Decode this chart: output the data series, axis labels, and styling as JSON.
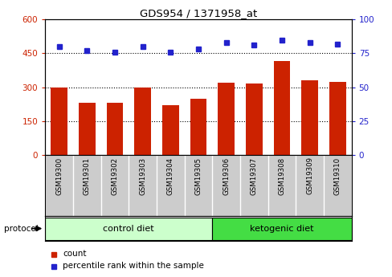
{
  "title": "GDS954 / 1371958_at",
  "samples": [
    "GSM19300",
    "GSM19301",
    "GSM19302",
    "GSM19303",
    "GSM19304",
    "GSM19305",
    "GSM19306",
    "GSM19307",
    "GSM19308",
    "GSM19309",
    "GSM19310"
  ],
  "counts": [
    298,
    232,
    232,
    300,
    220,
    250,
    320,
    315,
    415,
    330,
    325
  ],
  "percentile_ranks": [
    80,
    77,
    76,
    80,
    76,
    78,
    83,
    81,
    85,
    83,
    82
  ],
  "ylim_left": [
    0,
    600
  ],
  "ylim_right": [
    0,
    100
  ],
  "yticks_left": [
    0,
    150,
    300,
    450,
    600
  ],
  "yticks_right": [
    0,
    25,
    50,
    75,
    100
  ],
  "bar_color": "#cc2200",
  "dot_color": "#2222cc",
  "control_label": "control diet",
  "keto_label": "ketogenic diet",
  "protocol_label": "protocol",
  "legend_count": "count",
  "legend_percentile": "percentile rank within the sample",
  "control_color": "#ccffcc",
  "keto_color": "#44dd44",
  "sample_bg": "#cccccc",
  "n_control": 6,
  "n_keto": 5
}
